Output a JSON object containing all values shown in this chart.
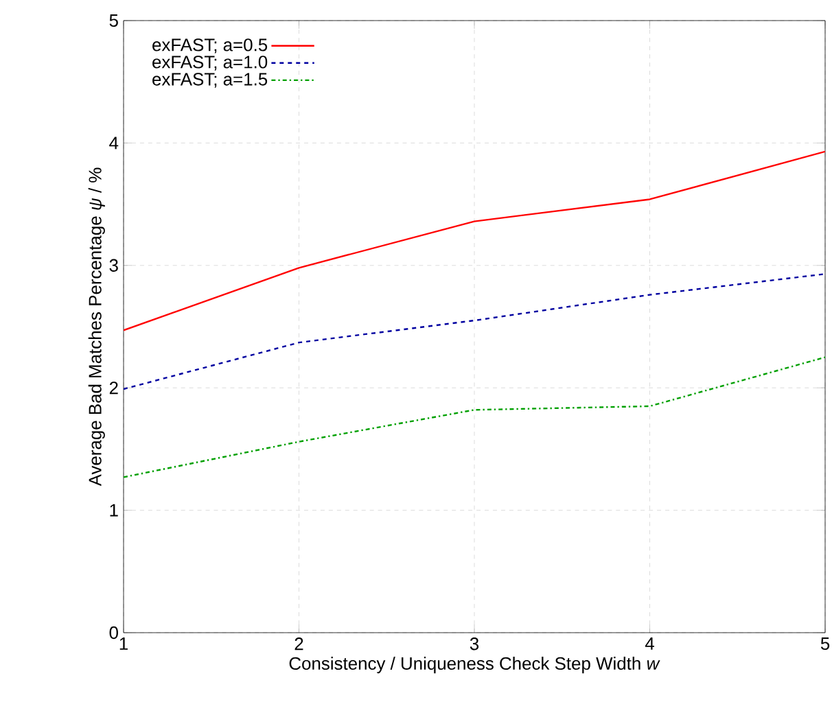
{
  "chart_data": {
    "type": "line",
    "xlabel": "Consistency / Uniqueness Check Step Width *w*",
    "ylabel": "Average Bad Matches Percentage *ψ* / %",
    "x": [
      1,
      2,
      3,
      4,
      5
    ],
    "series": [
      {
        "name": "exFAST; a=0.5",
        "color": "#ff0000",
        "line_style": "solid",
        "values": [
          2.47,
          2.98,
          3.36,
          3.54,
          3.93
        ]
      },
      {
        "name": "exFAST; a=1.0",
        "color": "#0000a0",
        "line_style": "dashed",
        "values": [
          1.99,
          2.37,
          2.55,
          2.76,
          2.93
        ]
      },
      {
        "name": "exFAST; a=1.5",
        "color": "#00a000",
        "line_style": "dashdot",
        "values": [
          1.27,
          1.56,
          1.82,
          1.85,
          2.25
        ]
      }
    ],
    "xlim": [
      1,
      5
    ],
    "ylim": [
      0,
      5
    ],
    "xticks": [
      1,
      2,
      3,
      4,
      5
    ],
    "yticks": [
      0,
      1,
      2,
      3,
      4,
      5
    ],
    "grid": true,
    "legend": "top left"
  }
}
